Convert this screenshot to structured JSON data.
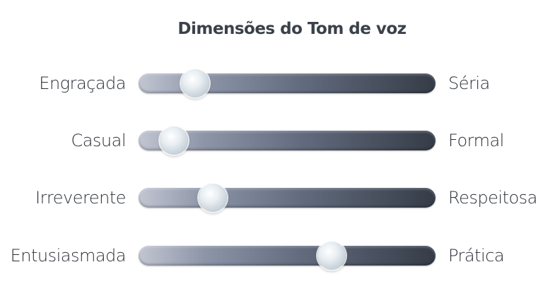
{
  "title": "Dimensões do Tom de voz",
  "sliders": [
    {
      "left_label": "Engraçada",
      "right_label": "Séria",
      "value": 0.19
    },
    {
      "left_label": "Casual",
      "right_label": "Formal",
      "value": 0.12
    },
    {
      "left_label": "Irreverente",
      "right_label": "Respeitosa",
      "value": 0.25
    },
    {
      "left_label": "Entusiasmada",
      "right_label": "Prática",
      "value": 0.65
    }
  ]
}
